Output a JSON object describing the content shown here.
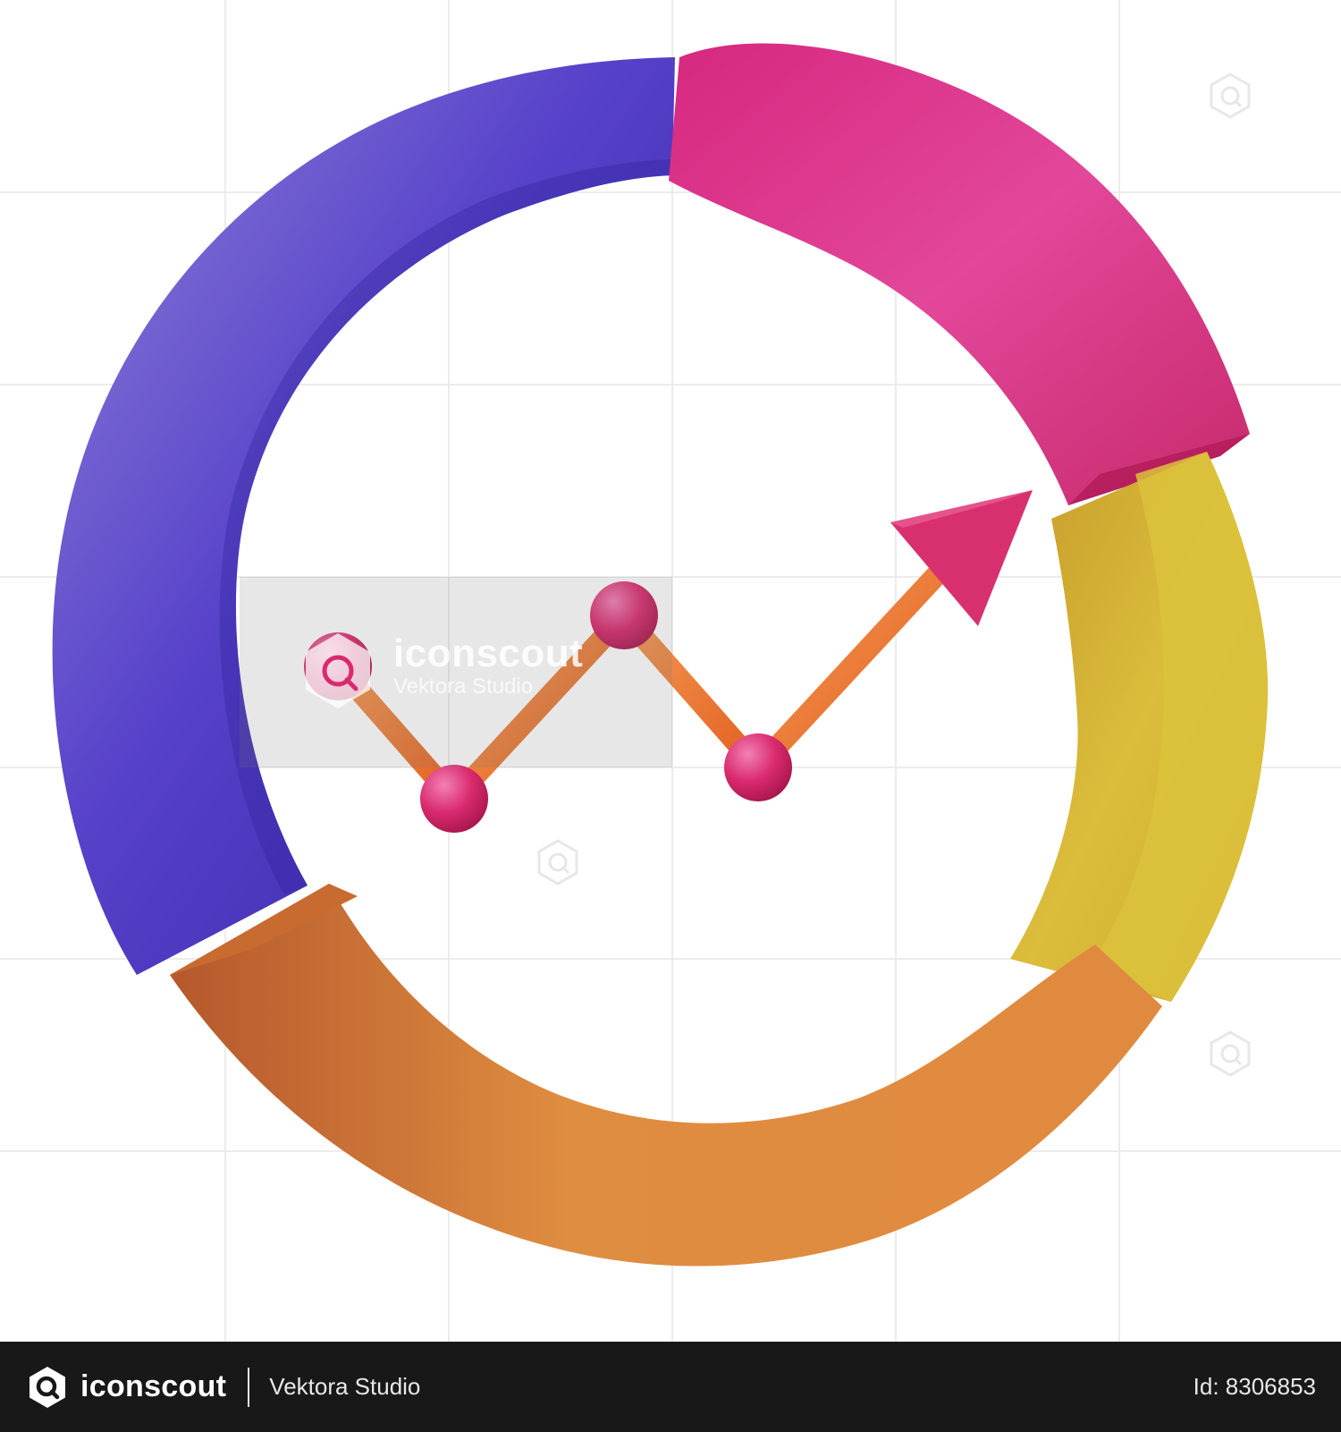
{
  "illustration": {
    "subject": "donut-chart-with-trend-arrow-icon",
    "colors": {
      "purple": "#5340c8",
      "pink": "#de3b8f",
      "yellow": "#d8ba35",
      "orange": "#de8a3c",
      "line": "#ec6d29",
      "node": "#d92a6e",
      "arrow": "#d9306f"
    }
  },
  "watermark": {
    "brand": "iconscout",
    "author": "Vektora Studio"
  },
  "footer": {
    "brand": "iconscout",
    "author": "Vektora Studio",
    "id_text": "Id: 8306853"
  }
}
